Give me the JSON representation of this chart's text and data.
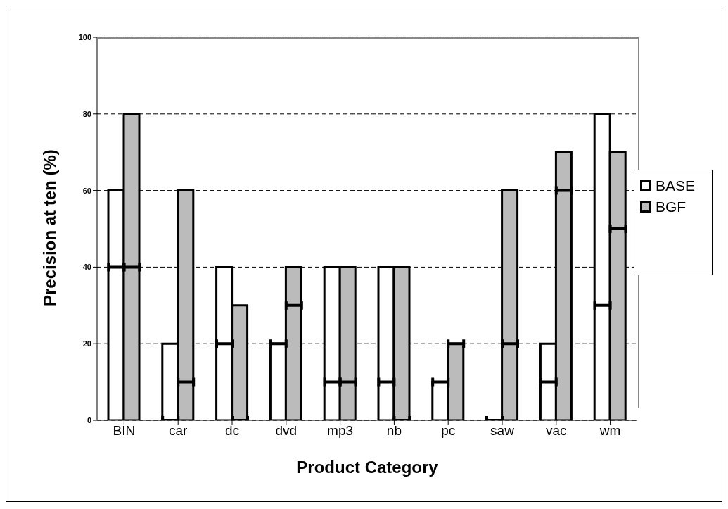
{
  "chart_data": {
    "type": "bar",
    "xlabel": "Product Category",
    "ylabel": "Precision at ten (%)",
    "categories": [
      "BIN",
      "car",
      "dc",
      "dvd",
      "mp3",
      "nb",
      "pc",
      "saw",
      "vac",
      "wm"
    ],
    "series": [
      {
        "name": "BASE",
        "color": "#ffffff",
        "values": [
          60,
          20,
          40,
          20,
          40,
          40,
          10,
          0,
          20,
          80
        ]
      },
      {
        "name": "BGF",
        "color": "#bbbbbb",
        "values": [
          80,
          60,
          30,
          40,
          40,
          40,
          20,
          60,
          70,
          70
        ]
      },
      {
        "type": "scatter",
        "color": "#000000",
        "values": [
          40,
          0,
          20,
          20,
          10,
          10,
          10,
          0,
          10,
          30
        ]
      },
      {
        "type": "scatter",
        "color": "#000000",
        "values": [
          40,
          10,
          0,
          30,
          10,
          0,
          20,
          20,
          60,
          50
        ]
      }
    ],
    "ylim": [
      0,
      100
    ],
    "yticks": [
      0,
      20,
      40,
      60,
      80,
      100
    ],
    "grid": "y",
    "legend": "right"
  }
}
